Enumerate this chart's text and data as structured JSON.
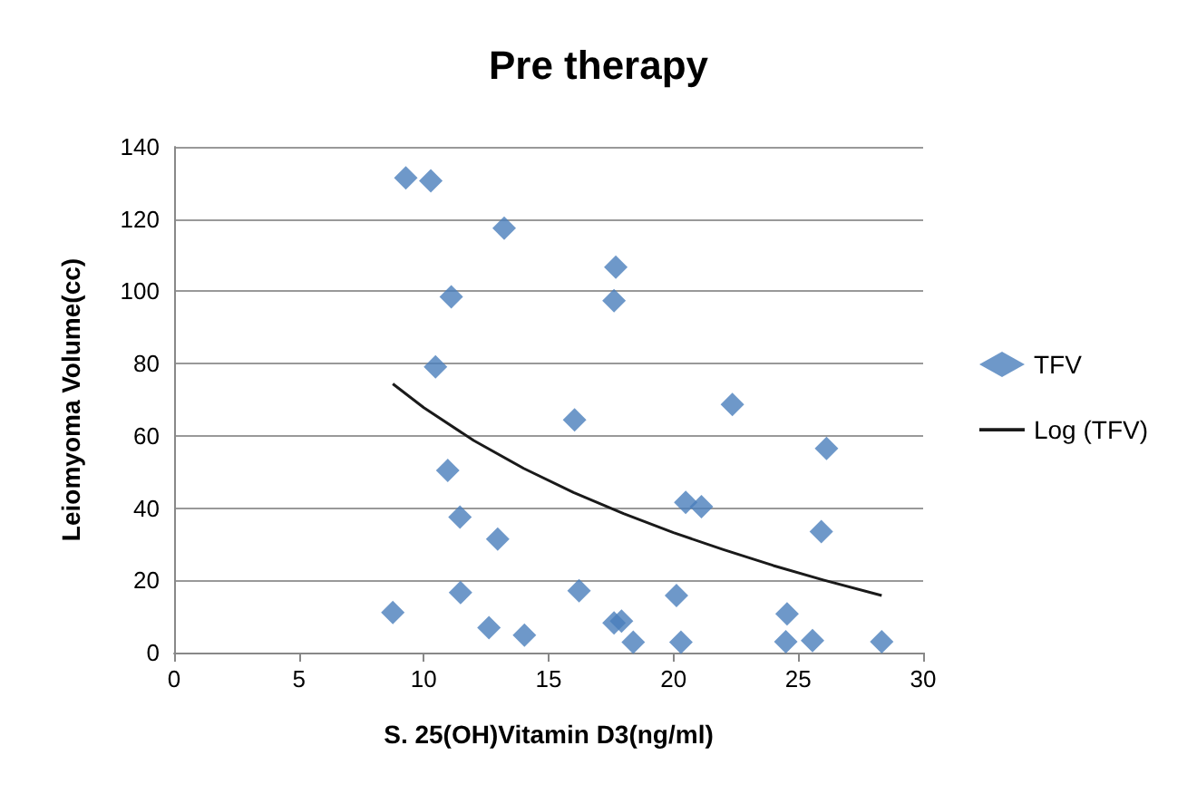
{
  "chart_data": {
    "type": "scatter",
    "title": "Pre therapy",
    "xlabel": "S. 25(OH)Vitamin D3(ng/ml)",
    "ylabel": "Leiomyoma Volume(cc)",
    "xlim": [
      0,
      30
    ],
    "xticks": [
      0,
      5,
      10,
      15,
      20,
      25,
      30
    ],
    "ylim": [
      0,
      140
    ],
    "yticks": [
      0,
      20,
      40,
      60,
      80,
      100,
      120,
      140
    ],
    "grid": "y",
    "legend": "right",
    "series": [
      {
        "name": "TFV",
        "marker": "diamond",
        "color": "#4a7ebb",
        "x": [
          9.28,
          10.28,
          13.22,
          17.69,
          17.62,
          11.1,
          10.47,
          16.04,
          22.36,
          10.96,
          11.45,
          12.96,
          20.49,
          21.12,
          11.47,
          16.22,
          20.12,
          8.76,
          12.61,
          14.03,
          17.62,
          17.92,
          18.39,
          20.3,
          26.13,
          25.92,
          24.55,
          24.5,
          25.57,
          28.34
        ],
        "values": [
          131.4,
          130.6,
          117.5,
          106.7,
          97.4,
          98.5,
          79.1,
          64.4,
          68.7,
          50.4,
          37.5,
          31.4,
          41.6,
          40.4,
          16.6,
          17.1,
          15.8,
          11.1,
          6.9,
          4.8,
          8.2,
          8.7,
          2.9,
          2.9,
          56.5,
          33.5,
          10.7,
          3.0,
          3.3,
          3.0
        ]
      },
      {
        "name": "Log (TFV)",
        "type": "line",
        "marker": "none",
        "line_style": "solid",
        "color": "#1a1a1a",
        "x": [
          8.76,
          10,
          12,
          14,
          16,
          18,
          20,
          22,
          24,
          26,
          28.34
        ],
        "values": [
          74.4,
          67.8,
          58.7,
          51.0,
          44.3,
          38.5,
          33.2,
          28.5,
          24.1,
          20.1,
          15.8
        ]
      }
    ]
  }
}
